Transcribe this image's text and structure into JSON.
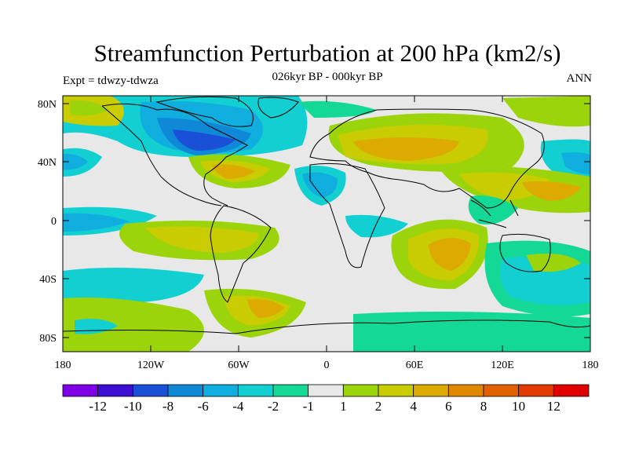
{
  "header": {
    "title": "Streamfunction Perturbation at 200 hPa (km2/s)",
    "subtitle": "026kyr BP - 000kyr BP",
    "left_label": "Expt = tdwzy-tdwza",
    "right_label": "ANN"
  },
  "axes": {
    "lat_ticks": [
      "80N",
      "40N",
      "0",
      "40S",
      "80S"
    ],
    "lon_ticks": [
      "180",
      "120W",
      "60W",
      "0",
      "60E",
      "120E",
      "180"
    ]
  },
  "colorbar": {
    "colors": [
      "#7f00e6",
      "#3c0fd2",
      "#1a4fd8",
      "#0f88d8",
      "#10aede",
      "#12cfd2",
      "#14d896",
      "#e8e8e8",
      "#9bd40a",
      "#c9cc00",
      "#dcaa00",
      "#e08800",
      "#e36000",
      "#e33a00",
      "#e00000"
    ],
    "labels": [
      "-12",
      "-10",
      "-8",
      "-6",
      "-4",
      "-2",
      "-1",
      "1",
      "2",
      "4",
      "6",
      "8",
      "10",
      "12"
    ]
  }
}
